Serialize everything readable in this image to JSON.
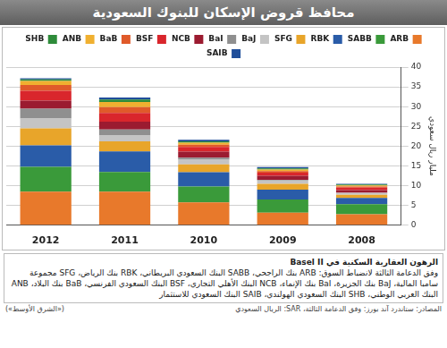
{
  "chart_data": {
    "type": "bar",
    "title": "محافظ قروض الإسكان للبنوك السعودية",
    "y_label": "مليار ريال سعودي",
    "categories": [
      "2012",
      "2011",
      "2010",
      "2009",
      "2008"
    ],
    "series": [
      {
        "name": "ARB",
        "color": "#e8792b",
        "values": [
          8.5,
          8.5,
          5.8,
          3.2,
          2.8
        ]
      },
      {
        "name": "SABB",
        "color": "#3a9a3a",
        "values": [
          6.3,
          5.0,
          4.0,
          3.3,
          2.5
        ]
      },
      {
        "name": "RBK",
        "color": "#2a5ca8",
        "values": [
          5.4,
          5.2,
          3.6,
          2.5,
          1.6
        ]
      },
      {
        "name": "SFG",
        "color": "#e8a52a",
        "values": [
          4.3,
          2.5,
          2.0,
          1.5,
          0.8
        ]
      },
      {
        "name": "BaJ",
        "color": "#c4c4c4",
        "values": [
          2.5,
          1.5,
          1.2,
          0.8,
          0.5
        ]
      },
      {
        "name": "BaI",
        "color": "#8f8f8f",
        "values": [
          2.5,
          1.5,
          0.5,
          0.2,
          0
        ]
      },
      {
        "name": "NCB",
        "color": "#9b1b30",
        "values": [
          2.0,
          2.0,
          1.5,
          1.0,
          0.7
        ]
      },
      {
        "name": "BSF",
        "color": "#d9262c",
        "values": [
          2.5,
          2.2,
          1.2,
          0.8,
          0.6
        ]
      },
      {
        "name": "BaB",
        "color": "#e05a2a",
        "values": [
          1.5,
          1.5,
          0.6,
          0.4,
          0.3
        ]
      },
      {
        "name": "ANB",
        "color": "#f0b030",
        "values": [
          1.0,
          1.3,
          0.5,
          0.4,
          0.3
        ]
      },
      {
        "name": "SHB",
        "color": "#2e8b3a",
        "values": [
          0.4,
          0.6,
          0.3,
          0.3,
          0.2
        ]
      },
      {
        "name": "SAIB",
        "color": "#1f4e9a",
        "values": [
          0.3,
          0.5,
          0.4,
          0.3,
          0.2
        ]
      }
    ],
    "ylim": [
      0,
      40
    ],
    "yticks": [
      0,
      5,
      10,
      15,
      20,
      25,
      30,
      35,
      40
    ],
    "stacked": true,
    "grid": true,
    "legend": "top",
    "notes_title": "الرهون العقارية السكنية في Basel II",
    "notes": "وفق الدعامة الثالثة لانضباط السوق: ARB بنك الراجحي، SABB البنك السعودي البريطاني، RBK بنك الرياض، SFG مجموعة سامبا المالية، BaJ بنك الجزيرة، BaI بنك الإنماء، NCB البنك الأهلي التجاري، BSF البنك السعودي الفرنسي، BaB بنك البلاد، ANB البنك العربي الوطني، SHB البنك السعودي الهولندي، SAIB البنك السعودي للاستثمار",
    "source": "المصادر: ستاندرد آند بورز: وفق الدعامة الثالثة، SAR: الريال السعودي",
    "credit": "(«الشرق الأوسط»)"
  }
}
